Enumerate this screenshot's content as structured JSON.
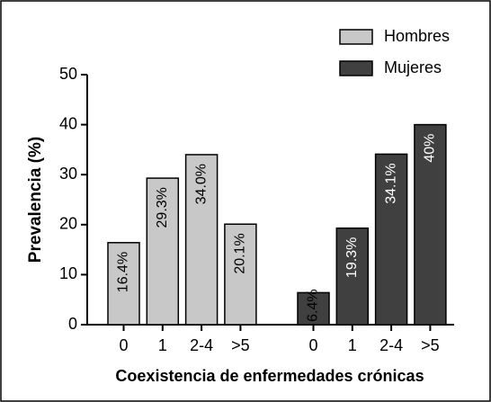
{
  "chart_data": {
    "type": "bar",
    "x_label": "Coexistencia de enfermedades crónicas",
    "y_label": "Prevalencia (%)",
    "categories": [
      "0",
      "1",
      "2-4",
      ">5"
    ],
    "series": [
      {
        "name": "Hombres",
        "color": "#c8c8c8",
        "values": [
          16.4,
          29.3,
          34,
          20.1
        ],
        "value_labels": [
          "16.4%",
          "29.3%",
          "34.0%",
          "20.1%"
        ]
      },
      {
        "name": "Mujeres",
        "color": "#404040",
        "values": [
          6.4,
          19.3,
          34.1,
          40
        ],
        "value_labels": [
          "6.4%",
          "19.3%",
          "34.1%",
          "40%"
        ]
      }
    ],
    "ylim": [
      0,
      50
    ],
    "yticks": [
      0,
      10,
      20,
      30,
      40,
      50
    ],
    "legend": "upper right"
  }
}
